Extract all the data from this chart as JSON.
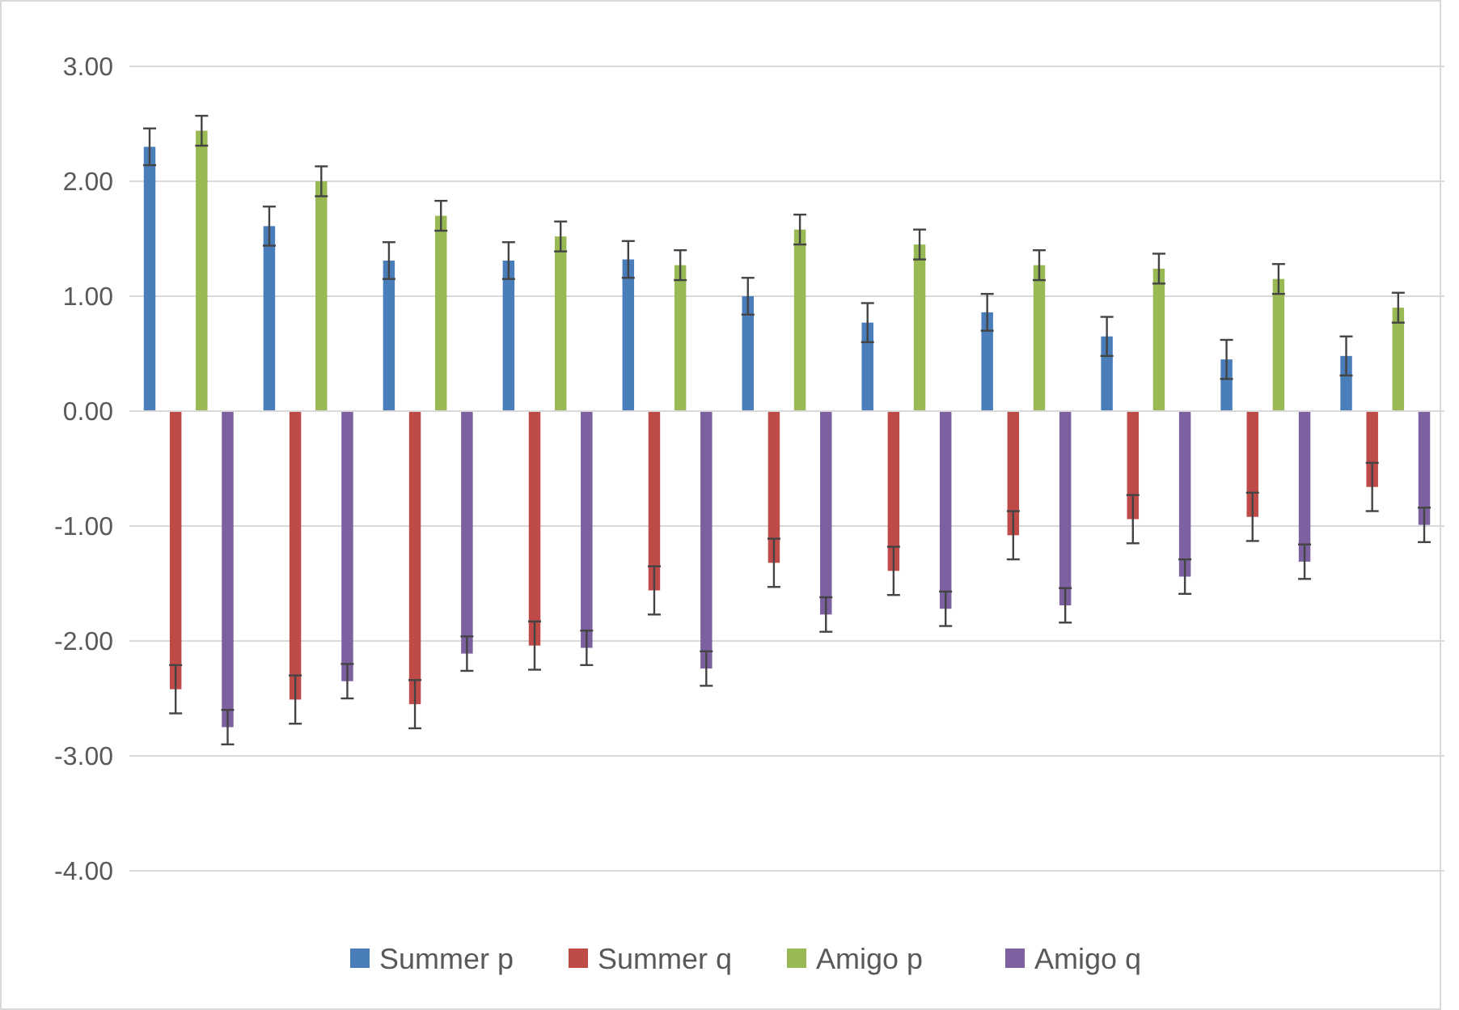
{
  "chart_data": {
    "type": "bar",
    "categories": [
      null,
      null,
      null,
      null,
      null,
      null,
      null,
      null,
      null,
      null,
      null
    ],
    "series": [
      {
        "name": "Summer p",
        "color": "#4a7ebb",
        "values": [
          2.3,
          1.61,
          1.31,
          1.31,
          1.32,
          1.0,
          0.77,
          0.86,
          0.65,
          0.45,
          0.48
        ],
        "errors": [
          0.16,
          0.17,
          0.16,
          0.16,
          0.16,
          0.16,
          0.17,
          0.16,
          0.17,
          0.17,
          0.17
        ]
      },
      {
        "name": "Summer q",
        "color": "#be4b48",
        "values": [
          -2.42,
          -2.51,
          -2.55,
          -2.04,
          -1.56,
          -1.32,
          -1.39,
          -1.08,
          -0.94,
          -0.92,
          -0.66
        ],
        "errors": [
          0.21,
          0.21,
          0.21,
          0.21,
          0.21,
          0.21,
          0.21,
          0.21,
          0.21,
          0.21,
          0.21
        ]
      },
      {
        "name": "Amigo p",
        "color": "#98b954",
        "values": [
          2.44,
          2.0,
          1.7,
          1.52,
          1.27,
          1.58,
          1.45,
          1.27,
          1.24,
          1.15,
          0.9
        ],
        "errors": [
          0.13,
          0.13,
          0.13,
          0.13,
          0.13,
          0.13,
          0.13,
          0.13,
          0.13,
          0.13,
          0.13
        ]
      },
      {
        "name": "Amigo q",
        "color": "#7d60a0",
        "values": [
          -2.75,
          -2.35,
          -2.11,
          -2.06,
          -2.24,
          -1.77,
          -1.72,
          -1.69,
          -1.44,
          -1.31,
          -0.99
        ],
        "errors": [
          0.15,
          0.15,
          0.15,
          0.15,
          0.15,
          0.15,
          0.15,
          0.15,
          0.15,
          0.15,
          0.15
        ]
      }
    ],
    "ylim": [
      -4,
      3
    ],
    "yticks": [
      {
        "value": -4,
        "label": "-4.00"
      },
      {
        "value": -3,
        "label": "-3.00"
      },
      {
        "value": -2,
        "label": "-2.00"
      },
      {
        "value": -1,
        "label": "-1.00"
      },
      {
        "value": 0,
        "label": "0.00"
      },
      {
        "value": 1,
        "label": "1.00"
      },
      {
        "value": 2,
        "label": "2.00"
      },
      {
        "value": 3,
        "label": "3.00"
      }
    ],
    "grid": "y",
    "legend": "bottom"
  }
}
